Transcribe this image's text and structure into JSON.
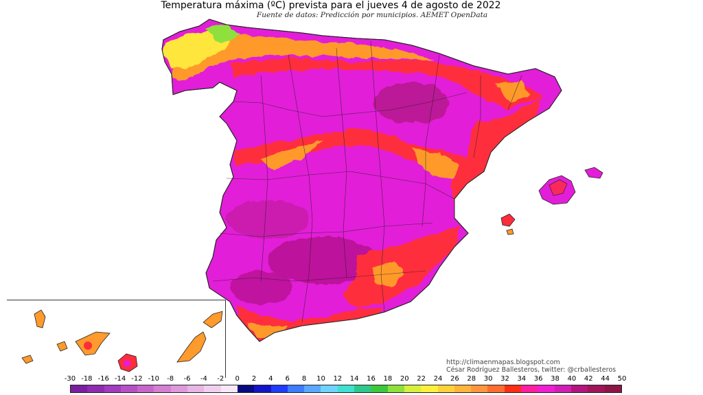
{
  "title": "Temperatura máxima (ºC) prevista para el jueves 4 de agosto de 2022",
  "subtitle": "Fuente de datos: Predicción por municipios. AEMET OpenData",
  "credits": {
    "url": "http://climaenmapas.blogspot.com",
    "author": "César Rodríguez Ballesteros, twitter: @crballesteros"
  },
  "legend": {
    "labels": [
      "-30",
      "-18",
      "-16",
      "-14",
      "-12",
      "-10",
      "-8",
      "-6",
      "-4",
      "-2",
      "0",
      "2",
      "4",
      "6",
      "8",
      "10",
      "12",
      "14",
      "16",
      "18",
      "20",
      "22",
      "24",
      "26",
      "28",
      "30",
      "32",
      "34",
      "36",
      "38",
      "40",
      "42",
      "44",
      "50"
    ],
    "colors": [
      "#7a1fa2",
      "#8e2bb0",
      "#a23bbd",
      "#b84fc6",
      "#c865cc",
      "#d47fd2",
      "#dd99da",
      "#e7b6e3",
      "#f0d0ee",
      "#f8e8f7",
      "#0a0a80",
      "#1414c8",
      "#1f3cff",
      "#3d7bff",
      "#5aa8ff",
      "#6fd3ff",
      "#3fe0d0",
      "#2ec88c",
      "#3cc83c",
      "#8ee03c",
      "#d7f03c",
      "#fff03c",
      "#ffd23c",
      "#ffb43c",
      "#ff963c",
      "#ff6e2d",
      "#ff2d14",
      "#ff1ea0",
      "#f01ed2",
      "#d21eb4",
      "#b4147d",
      "#a0145a",
      "#8c1446"
    ]
  },
  "map_colors": {
    "main": "#e21ed8",
    "dark": "#b4148c",
    "hot": "#ff2d3c",
    "orange": "#ff9a2c",
    "yellow": "#ffe63c",
    "green": "#8ee03c",
    "border": "#222222"
  },
  "map_regions": [
    "Península Ibérica (España)",
    "Islas Baleares",
    "Islas Canarias"
  ]
}
